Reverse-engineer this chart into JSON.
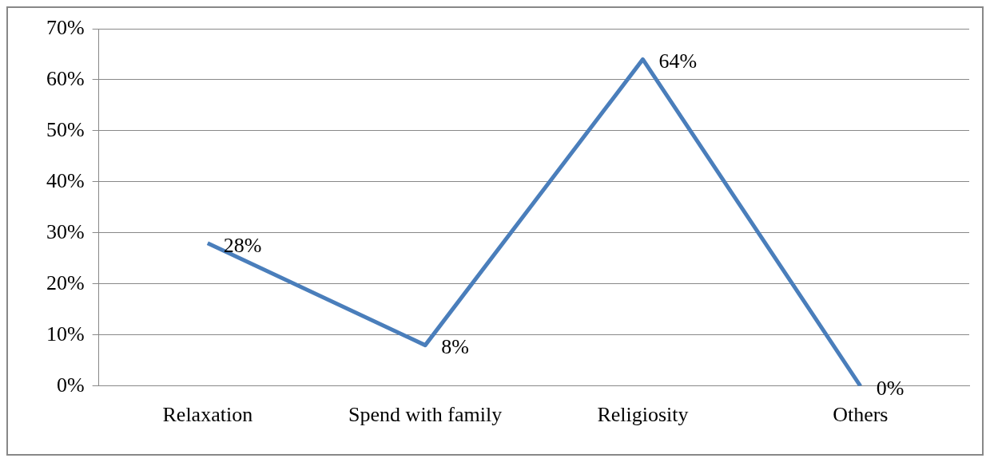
{
  "chart_data": {
    "type": "line",
    "categories": [
      "Relaxation",
      "Spend with family",
      "Religiosity",
      "Others"
    ],
    "series": [
      {
        "color": "#4a7ebb",
        "values": [
          28,
          8,
          64,
          0
        ],
        "value_labels": [
          "28%",
          "8%",
          "64%",
          "0%"
        ]
      }
    ],
    "ylim": [
      0,
      70
    ],
    "yticks": [
      {
        "value": 0,
        "label": "0%"
      },
      {
        "value": 10,
        "label": "10%"
      },
      {
        "value": 20,
        "label": "20%"
      },
      {
        "value": 30,
        "label": "30%"
      },
      {
        "value": 40,
        "label": "40%"
      },
      {
        "value": 50,
        "label": "50%"
      },
      {
        "value": 60,
        "label": "60%"
      },
      {
        "value": 70,
        "label": "70%"
      }
    ],
    "grid": "y",
    "legend": false,
    "marker": "none",
    "line_style": "solid"
  }
}
